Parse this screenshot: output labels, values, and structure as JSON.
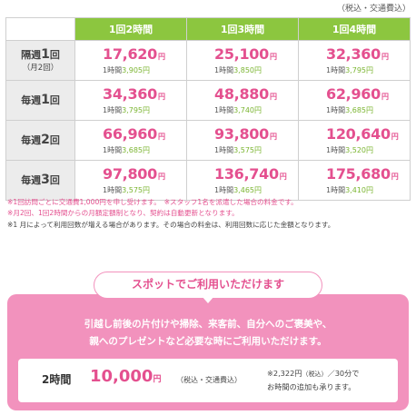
{
  "tax_note": "（税込・交通費込）",
  "table": {
    "columns": [
      "1回2時間",
      "1回3時間",
      "1回4時間"
    ],
    "hourly_prefix": "1時間",
    "yen": "円",
    "rows": [
      {
        "label": "隔週",
        "num": "1",
        "suffix": "回",
        "sub": "（月2回）",
        "cells": [
          {
            "price": "17,620",
            "hourly": "3,905"
          },
          {
            "price": "25,100",
            "hourly": "3,850"
          },
          {
            "price": "32,360",
            "hourly": "3,795"
          }
        ]
      },
      {
        "label": "毎週",
        "num": "1",
        "suffix": "回",
        "sub": "",
        "cells": [
          {
            "price": "34,360",
            "hourly": "3,795"
          },
          {
            "price": "48,880",
            "hourly": "3,740"
          },
          {
            "price": "62,960",
            "hourly": "3,685"
          }
        ]
      },
      {
        "label": "毎週",
        "num": "2",
        "suffix": "回",
        "sub": "",
        "cells": [
          {
            "price": "66,960",
            "hourly": "3,685"
          },
          {
            "price": "93,800",
            "hourly": "3,575"
          },
          {
            "price": "120,640",
            "hourly": "3,520"
          }
        ]
      },
      {
        "label": "毎週",
        "num": "3",
        "suffix": "回",
        "sub": "",
        "cells": [
          {
            "price": "97,800",
            "hourly": "3,575"
          },
          {
            "price": "136,740",
            "hourly": "3,465"
          },
          {
            "price": "175,680",
            "hourly": "3,410"
          }
        ]
      }
    ]
  },
  "notes": {
    "line1": "※1回訪問ごとに交通費1,000円を申し受けます。　※スタッフ1名を派遣した場合の料金です。",
    "line2": "※月2回、1回2時間からの月額定額制となり、契約は自動更新となります。",
    "line3": "※1 月によって利用回数が増える場合があります。その場合の料金は、利用回数に応じた金額となります。"
  },
  "spot": {
    "title": "スポットでご利用いただけます",
    "line1": "引越し前後の片付けや掃除、来客前、自分へのご褒美や、",
    "line2": "親へのプレゼントなど必要な時にご利用いただけます。",
    "duration": "2時間",
    "price": "10,000",
    "yen": "円",
    "tax": "（税込・交通費込）",
    "extra_price": "※2,322円",
    "extra_tax": "（税込）",
    "extra_per": "／30分で",
    "extra_line2": "お時間の追加も承ります。"
  },
  "colors": {
    "accent_pink": "#e4508f",
    "header_green": "#8cc63f",
    "spot_pink": "#f292bd"
  }
}
